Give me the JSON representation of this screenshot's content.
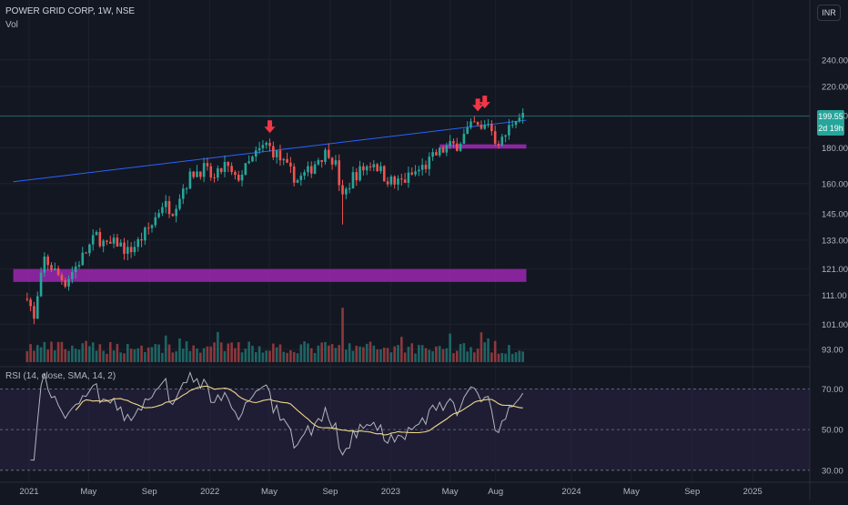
{
  "header": {
    "symbol_title": "POWER GRID CORP, 1W, NSE",
    "volume_label": "Vol",
    "currency_button": "INR"
  },
  "price_tag": {
    "price": "199.55",
    "countdown": "2d 19h"
  },
  "rsi_label": "RSI (14, close, SMA, 14, 2)",
  "colors": {
    "background": "#131722",
    "up": "#26a69a",
    "down": "#ef5350",
    "trendline": "#2962ff",
    "zone": "#9c27b0",
    "arrow": "#f23645",
    "rsi_line": "#b2b5be",
    "rsi_ma": "#f0d98a",
    "rsi_band": "#2a2344"
  },
  "chart_data": [
    {
      "type": "candlestick",
      "title": "POWER GRID CORP, 1W, NSE",
      "y_axis": {
        "scale": "log",
        "ticks": [
          93,
          101,
          111,
          121,
          133,
          145,
          160,
          180,
          200,
          220,
          240
        ],
        "tick_labels": [
          "93.00",
          "101.00",
          "111.00",
          "121.00",
          "133.00",
          "145.00",
          "160.00",
          "180.00",
          "200.00",
          "220.00",
          "240.00"
        ]
      },
      "x_axis": {
        "tick_labels": [
          "2021",
          "May",
          "Sep",
          "2022",
          "May",
          "Sep",
          "2023",
          "May",
          "Aug",
          "2024",
          "May",
          "Sep",
          "2025"
        ]
      },
      "anchors": [
        [
          "2020-12-28",
          112
        ],
        [
          "2021-01-11",
          102
        ],
        [
          "2021-02-01",
          125
        ],
        [
          "2021-02-22",
          120
        ],
        [
          "2021-03-15",
          116
        ],
        [
          "2021-04-05",
          122
        ],
        [
          "2021-04-26",
          128
        ],
        [
          "2021-05-17",
          135
        ],
        [
          "2021-06-07",
          130
        ],
        [
          "2021-06-28",
          132
        ],
        [
          "2021-07-19",
          128
        ],
        [
          "2021-08-09",
          132
        ],
        [
          "2021-09-06",
          140
        ],
        [
          "2021-09-27",
          150
        ],
        [
          "2021-10-18",
          147
        ],
        [
          "2021-11-08",
          158
        ],
        [
          "2021-11-29",
          166
        ],
        [
          "2021-12-20",
          168
        ],
        [
          "2022-01-10",
          162
        ],
        [
          "2022-01-31",
          170
        ],
        [
          "2022-02-21",
          162
        ],
        [
          "2022-03-14",
          168
        ],
        [
          "2022-04-04",
          176
        ],
        [
          "2022-04-25",
          182
        ],
        [
          "2022-05-16",
          176
        ],
        [
          "2022-06-06",
          168
        ],
        [
          "2022-06-27",
          162
        ],
        [
          "2022-07-18",
          166
        ],
        [
          "2022-08-08",
          174
        ],
        [
          "2022-08-29",
          178
        ],
        [
          "2022-09-12",
          170
        ],
        [
          "2022-09-26",
          152
        ],
        [
          "2022-10-17",
          164
        ],
        [
          "2022-11-07",
          168
        ],
        [
          "2022-11-28",
          172
        ],
        [
          "2022-12-19",
          164
        ],
        [
          "2023-01-09",
          160
        ],
        [
          "2023-01-30",
          162
        ],
        [
          "2023-02-20",
          166
        ],
        [
          "2023-03-13",
          170
        ],
        [
          "2023-04-03",
          176
        ],
        [
          "2023-04-24",
          180
        ],
        [
          "2023-05-15",
          182
        ],
        [
          "2023-06-05",
          190
        ],
        [
          "2023-06-19",
          194
        ],
        [
          "2023-07-03",
          190
        ],
        [
          "2023-07-17",
          196
        ],
        [
          "2023-07-31",
          185
        ],
        [
          "2023-08-14",
          184
        ],
        [
          "2023-08-28",
          192
        ],
        [
          "2023-09-11",
          200
        ],
        [
          "2023-09-25",
          199.55
        ]
      ],
      "annotations": {
        "trendline": [
          [
            "2020-11-30",
            161
          ],
          [
            "2023-10-02",
            197
          ]
        ],
        "horizontal_line": 199.55,
        "support_zone": {
          "low": 116,
          "high": 121,
          "from": "2020-11-30",
          "to": "2023-10-02"
        },
        "resistance_zone": {
          "low": 179.5,
          "high": 182,
          "from": "2023-04-10",
          "to": "2023-10-02"
        },
        "down_arrows": [
          [
            "2022-05-02",
            190
          ],
          [
            "2023-06-26",
            204
          ],
          [
            "2023-07-10",
            206
          ]
        ]
      }
    },
    {
      "type": "line",
      "title": "RSI (14, close, SMA, 14, 2)",
      "y_axis": {
        "ticks": [
          30,
          50,
          70
        ],
        "tick_labels": [
          "30.00",
          "50.00",
          "70.00"
        ]
      },
      "bands": [
        30,
        50,
        70
      ],
      "series": []
    }
  ]
}
